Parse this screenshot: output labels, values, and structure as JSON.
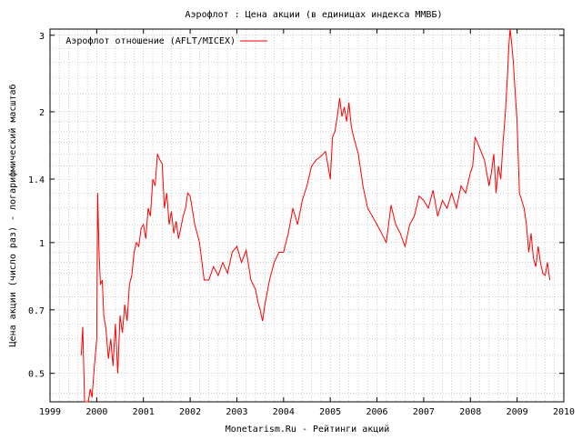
{
  "chart_data": {
    "type": "line",
    "title": "Аэрофлот : Цена акции (в единицах индекса ММВБ)",
    "xlabel": "Monetarism.Ru - Рейтинги акций",
    "ylabel": "Цена акции (число раз) - логарифмический масштаб",
    "y_scale": "log",
    "xlim": [
      1999.0,
      2010.0
    ],
    "ylim": [
      0.43,
      3.1
    ],
    "x_ticks": [
      1999,
      2000,
      2001,
      2002,
      2003,
      2004,
      2005,
      2006,
      2007,
      2008,
      2009,
      2010
    ],
    "y_ticks": [
      0.5,
      0.7,
      1,
      1.4,
      2,
      3
    ],
    "grid": true,
    "legend_position": "top-left",
    "colors": {
      "series": "#ff0000",
      "grid": "#b0b0b0",
      "axes": "#000000"
    },
    "series": [
      {
        "name": "Аэрофлот отношение (AFLT/MICEX)",
        "x": [
          1999.67,
          1999.7,
          1999.74,
          1999.78,
          1999.82,
          1999.86,
          1999.9,
          1999.95,
          2000.0,
          2000.02,
          2000.05,
          2000.08,
          2000.12,
          2000.15,
          2000.2,
          2000.25,
          2000.3,
          2000.35,
          2000.4,
          2000.45,
          2000.5,
          2000.55,
          2000.6,
          2000.65,
          2000.7,
          2000.75,
          2000.8,
          2000.85,
          2000.9,
          2000.95,
          2001.0,
          2001.05,
          2001.1,
          2001.15,
          2001.2,
          2001.25,
          2001.3,
          2001.35,
          2001.4,
          2001.45,
          2001.5,
          2001.55,
          2001.6,
          2001.65,
          2001.7,
          2001.75,
          2001.8,
          2001.85,
          2001.9,
          2001.95,
          2002.0,
          2002.1,
          2002.2,
          2002.3,
          2002.4,
          2002.5,
          2002.6,
          2002.7,
          2002.8,
          2002.9,
          2003.0,
          2003.1,
          2003.2,
          2003.3,
          2003.4,
          2003.45,
          2003.5,
          2003.55,
          2003.6,
          2003.7,
          2003.8,
          2003.9,
          2004.0,
          2004.1,
          2004.2,
          2004.3,
          2004.4,
          2004.5,
          2004.6,
          2004.7,
          2004.8,
          2004.9,
          2005.0,
          2005.05,
          2005.1,
          2005.15,
          2005.2,
          2005.25,
          2005.3,
          2005.35,
          2005.4,
          2005.45,
          2005.5,
          2005.6,
          2005.7,
          2005.8,
          2005.9,
          2006.0,
          2006.1,
          2006.2,
          2006.3,
          2006.4,
          2006.5,
          2006.6,
          2006.7,
          2006.8,
          2006.9,
          2007.0,
          2007.1,
          2007.2,
          2007.3,
          2007.4,
          2007.5,
          2007.6,
          2007.7,
          2007.8,
          2007.9,
          2008.0,
          2008.05,
          2008.1,
          2008.15,
          2008.2,
          2008.3,
          2008.4,
          2008.45,
          2008.5,
          2008.55,
          2008.6,
          2008.65,
          2008.7,
          2008.75,
          2008.8,
          2008.82,
          2008.85,
          2008.88,
          2008.92,
          2008.96,
          2009.0,
          2009.05,
          2009.1,
          2009.15,
          2009.2,
          2009.25,
          2009.3,
          2009.35,
          2009.4,
          2009.45,
          2009.5,
          2009.55,
          2009.6,
          2009.65,
          2009.7
        ],
        "y": [
          0.55,
          0.64,
          0.42,
          0.4,
          0.38,
          0.46,
          0.44,
          0.52,
          0.6,
          1.3,
          0.95,
          0.8,
          0.82,
          0.68,
          0.63,
          0.54,
          0.6,
          0.52,
          0.65,
          0.5,
          0.68,
          0.62,
          0.72,
          0.66,
          0.8,
          0.84,
          0.95,
          1.0,
          0.98,
          1.08,
          1.1,
          1.02,
          1.2,
          1.15,
          1.4,
          1.35,
          1.6,
          1.55,
          1.52,
          1.2,
          1.3,
          1.1,
          1.18,
          1.05,
          1.12,
          1.02,
          1.08,
          1.15,
          1.2,
          1.3,
          1.28,
          1.1,
          1.0,
          0.82,
          0.82,
          0.88,
          0.84,
          0.9,
          0.85,
          0.95,
          0.98,
          0.9,
          0.96,
          0.82,
          0.78,
          0.73,
          0.7,
          0.66,
          0.72,
          0.82,
          0.9,
          0.95,
          0.95,
          1.05,
          1.2,
          1.1,
          1.25,
          1.35,
          1.5,
          1.55,
          1.58,
          1.62,
          1.4,
          1.75,
          1.8,
          1.95,
          2.15,
          1.95,
          2.05,
          1.9,
          2.1,
          1.85,
          1.75,
          1.6,
          1.35,
          1.2,
          1.15,
          1.1,
          1.05,
          1.0,
          1.22,
          1.1,
          1.05,
          0.98,
          1.1,
          1.15,
          1.28,
          1.25,
          1.2,
          1.32,
          1.15,
          1.25,
          1.2,
          1.3,
          1.2,
          1.35,
          1.3,
          1.45,
          1.5,
          1.75,
          1.7,
          1.65,
          1.55,
          1.35,
          1.45,
          1.6,
          1.3,
          1.5,
          1.4,
          1.7,
          2.0,
          2.5,
          2.8,
          3.1,
          2.9,
          2.6,
          2.2,
          1.9,
          1.3,
          1.25,
          1.2,
          1.1,
          0.95,
          1.05,
          0.92,
          0.88,
          0.98,
          0.9,
          0.85,
          0.84,
          0.9,
          0.82
        ]
      }
    ]
  }
}
